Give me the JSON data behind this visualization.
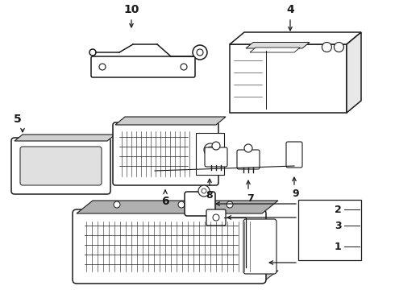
{
  "bg_color": "#ffffff",
  "line_color": "#1a1a1a",
  "lw": 1.1,
  "fig_w": 4.9,
  "fig_h": 3.6,
  "dpi": 100
}
